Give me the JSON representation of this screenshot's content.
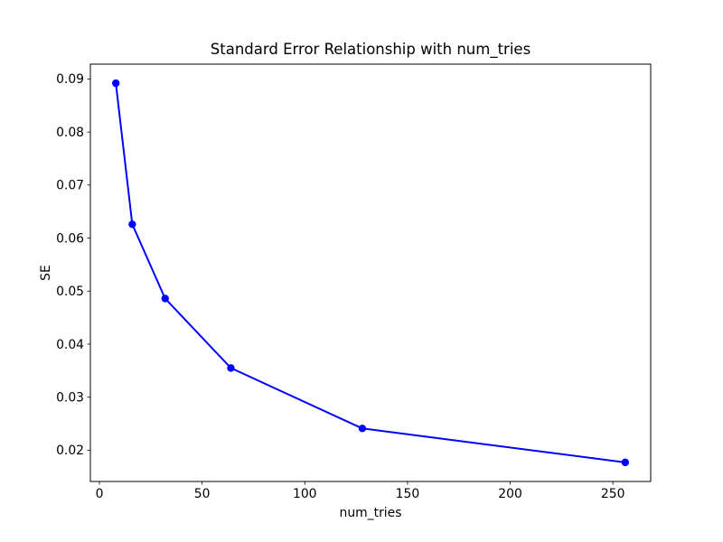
{
  "chart_data": {
    "type": "line",
    "title": "Standard Error Relationship with num_tries",
    "xlabel": "num_tries",
    "ylabel": "SE",
    "x": [
      8,
      16,
      32,
      64,
      128,
      256
    ],
    "y": [
      0.0892,
      0.0626,
      0.0486,
      0.0355,
      0.0241,
      0.0177
    ],
    "series": [
      {
        "name": "SE",
        "x": [
          8,
          16,
          32,
          64,
          128,
          256
        ],
        "values": [
          0.0892,
          0.0626,
          0.0486,
          0.0355,
          0.0241,
          0.0177
        ]
      }
    ],
    "xticks": [
      0,
      50,
      100,
      150,
      200,
      250
    ],
    "yticks": [
      0.02,
      0.03,
      0.04,
      0.05,
      0.06,
      0.07,
      0.08,
      0.09
    ],
    "xlim": [
      -4.4,
      268.4
    ],
    "ylim": [
      0.0141,
      0.0928
    ],
    "grid": false,
    "legend": null,
    "line_color": "#0000ff",
    "marker": "o",
    "marker_color": "#0000ff",
    "axis_color": "#000000",
    "background_color": "#ffffff",
    "y_tick_decimals": 2
  }
}
